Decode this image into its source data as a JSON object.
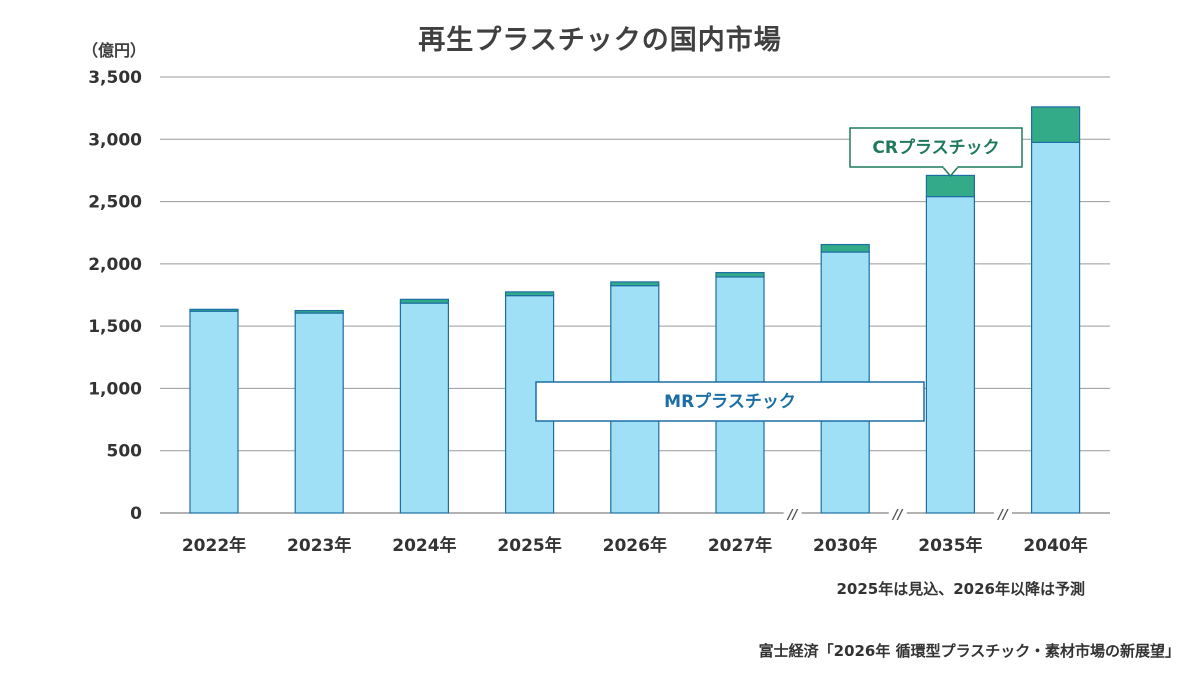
{
  "chart_data": {
    "type": "bar",
    "stacked": true,
    "title": "再生プラスチックの国内市場",
    "y_unit": "（億円）",
    "ylim": [
      0,
      3500
    ],
    "yticks": [
      0,
      500,
      1000,
      1500,
      2000,
      2500,
      3000,
      3500
    ],
    "ytick_labels": [
      "0",
      "500",
      "1,000",
      "1,500",
      "2,000",
      "2,500",
      "3,000",
      "3,500"
    ],
    "grid": true,
    "categories": [
      "2022年",
      "2023年",
      "2024年",
      "2025年",
      "2026年",
      "2027年",
      "2030年",
      "2035年",
      "2040年"
    ],
    "axis_breaks_after": [
      "2027年",
      "2030年",
      "2035年"
    ],
    "axis_break_symbol": "//",
    "series": [
      {
        "name": "MRプラスチック",
        "color": "#a0e0f6",
        "values": [
          1620,
          1605,
          1685,
          1745,
          1825,
          1895,
          2095,
          2540,
          2975
        ]
      },
      {
        "name": "CRプラスチック",
        "color": "#33aa88",
        "values": [
          15,
          20,
          30,
          30,
          30,
          35,
          60,
          170,
          285
        ]
      }
    ],
    "series_label_positions": {
      "MRプラスチック": "center",
      "CRプラスチック": "above 2035年 bar"
    }
  },
  "notes": {
    "forecast": "2025年は見込、2026年以降は予測",
    "source": "富士経済「2026年 循環型プラスチック・素材市場の新展望」"
  }
}
